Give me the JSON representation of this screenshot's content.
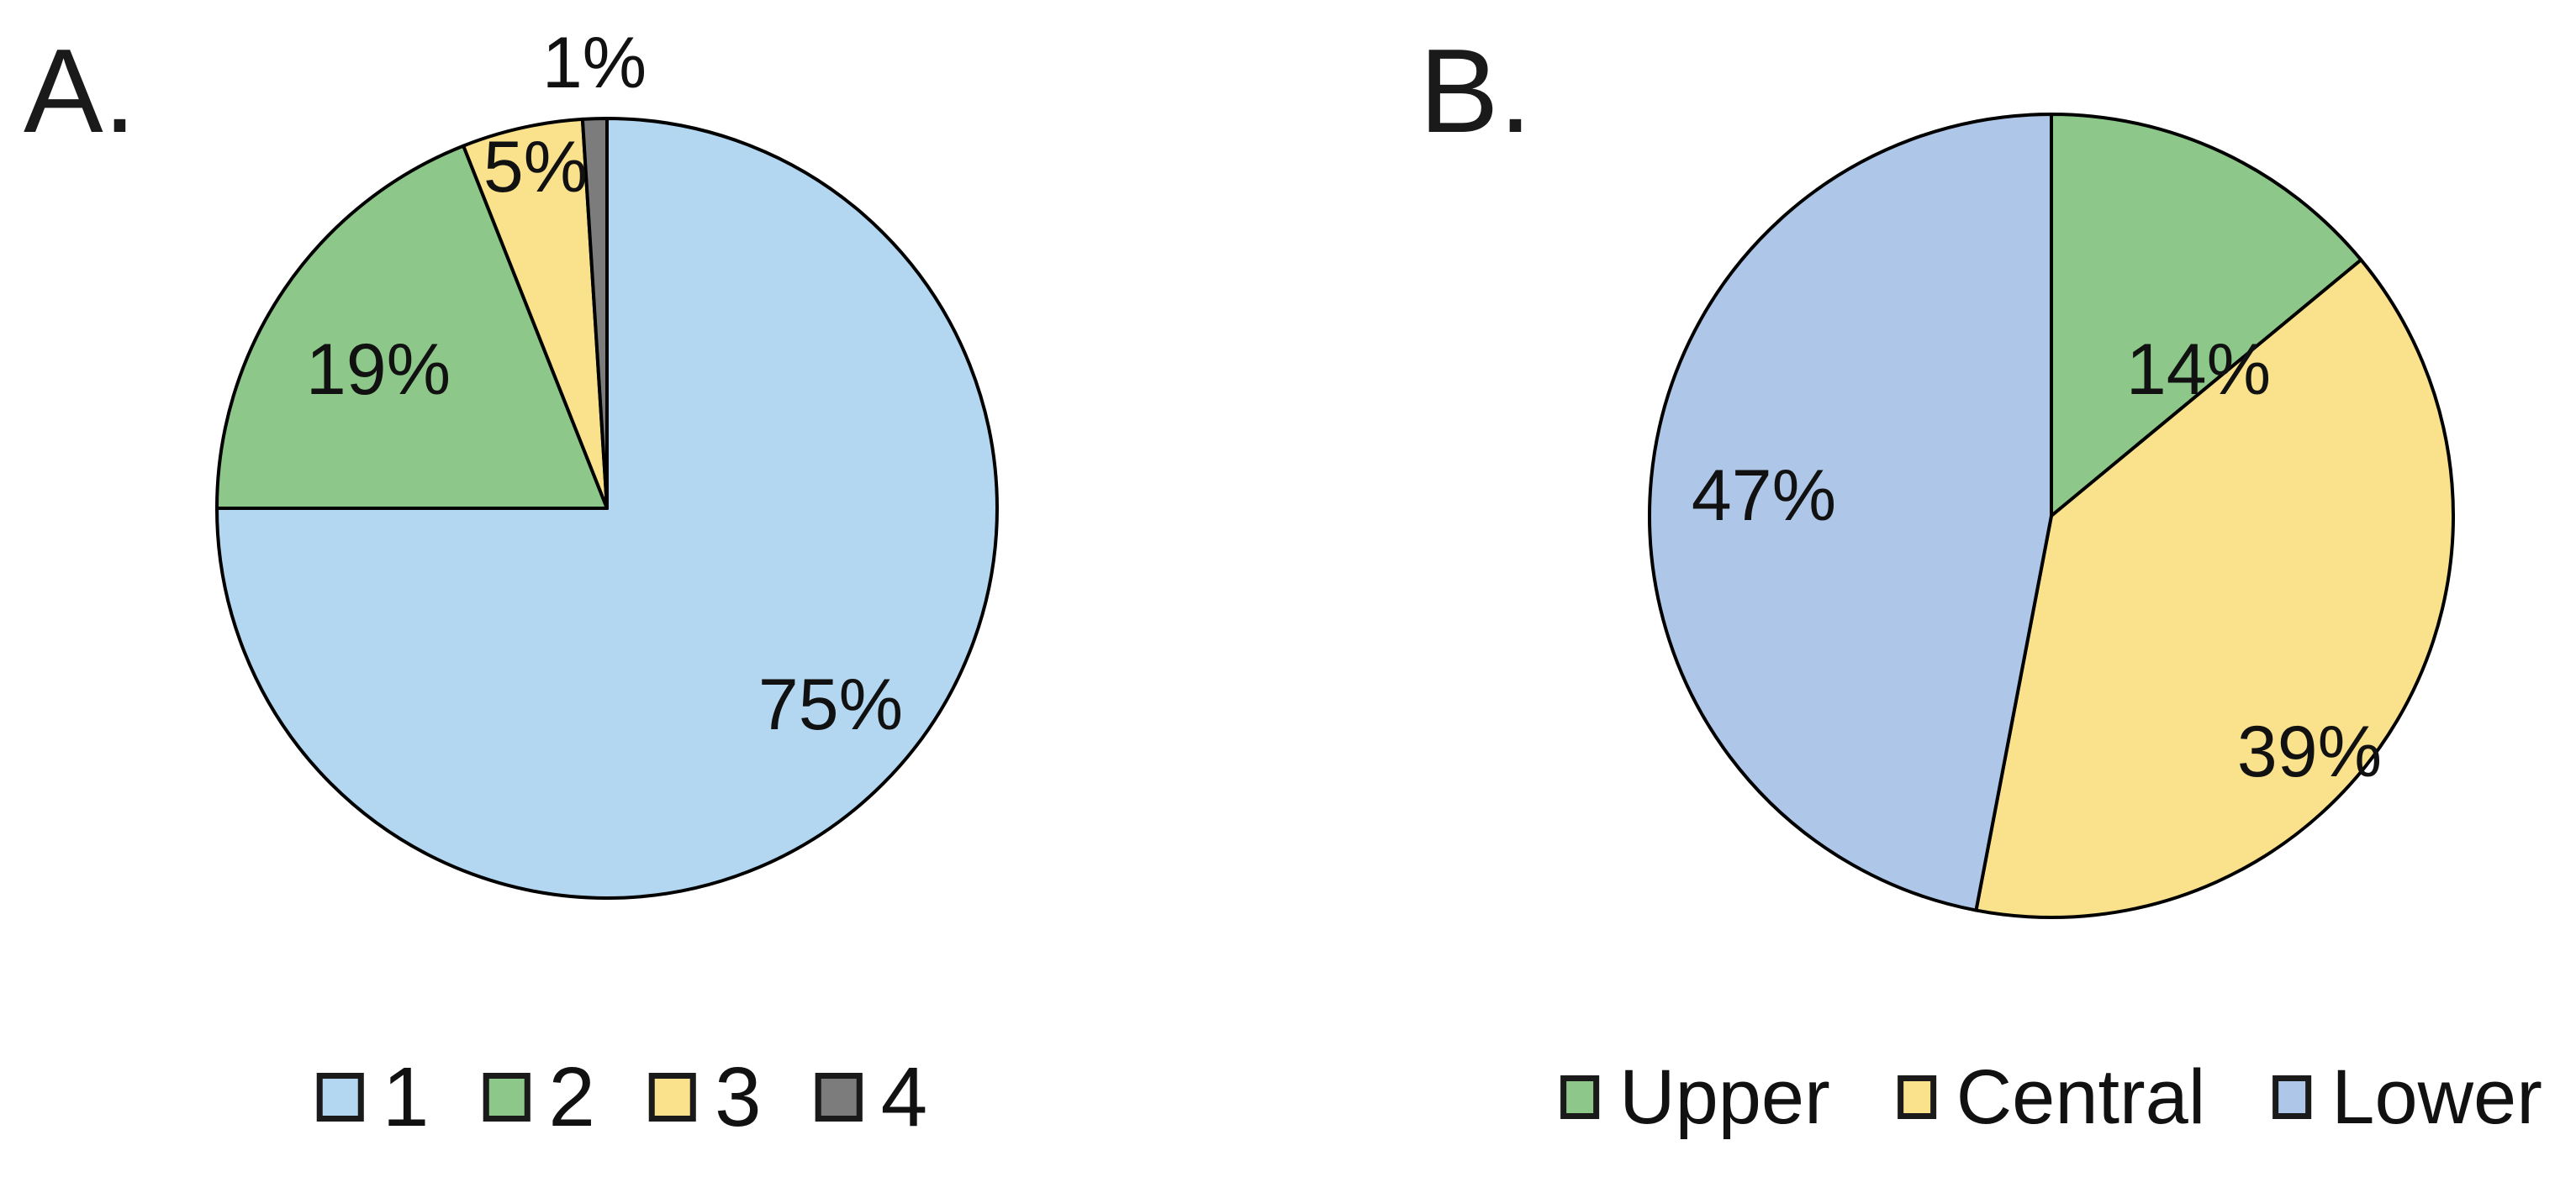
{
  "page": {
    "background": "#ffffff"
  },
  "chart_data": [
    {
      "id": "A",
      "panel_label": "A.",
      "type": "pie",
      "categories": [
        "1",
        "2",
        "3",
        "4"
      ],
      "values": [
        75,
        19,
        5,
        1
      ],
      "slice_labels": [
        "75%",
        "19%",
        "5%",
        "1%"
      ],
      "colors": [
        "#B3D7F0",
        "#8DC88A",
        "#FAE18C",
        "#7C7C7C"
      ],
      "outline_color": "#000000",
      "start_angle_deg": 0,
      "direction": "clockwise",
      "legend": {
        "position": "bottom",
        "entries": [
          {
            "label": "1",
            "color": "#B3D7F0"
          },
          {
            "label": "2",
            "color": "#8DC88A"
          },
          {
            "label": "3",
            "color": "#FAE18C"
          },
          {
            "label": "4",
            "color": "#7C7C7C"
          }
        ]
      }
    },
    {
      "id": "B",
      "panel_label": "B.",
      "type": "pie",
      "categories": [
        "Upper",
        "Central",
        "Lower"
      ],
      "values": [
        14,
        39,
        47
      ],
      "slice_labels": [
        "14%",
        "39%",
        "47%"
      ],
      "colors": [
        "#8DC88A",
        "#FAE18C",
        "#AEC6E7"
      ],
      "outline_color": "#000000",
      "start_angle_deg": 0,
      "direction": "clockwise",
      "legend": {
        "position": "bottom",
        "entries": [
          {
            "label": "Upper",
            "color": "#8DC88A"
          },
          {
            "label": "Central",
            "color": "#FAE18C"
          },
          {
            "label": "Lower",
            "color": "#AEC6E7"
          }
        ]
      }
    }
  ]
}
